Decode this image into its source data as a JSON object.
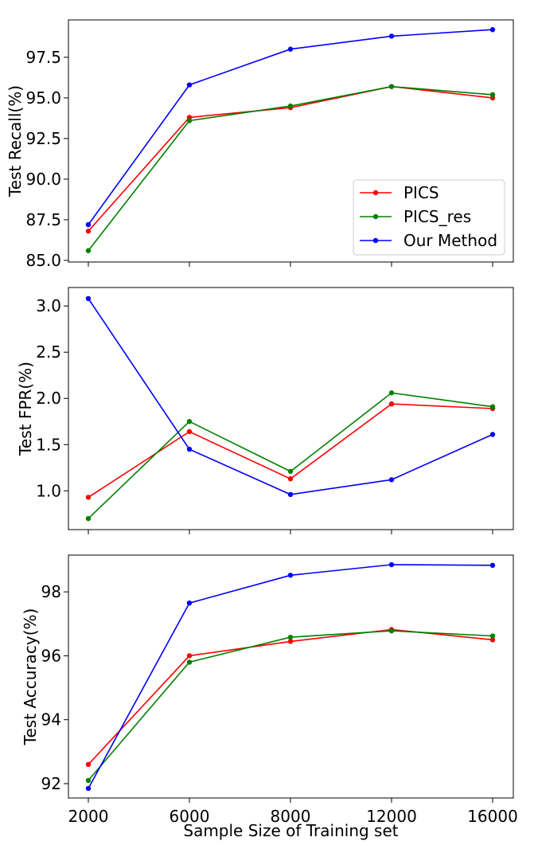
{
  "chart_data": [
    {
      "type": "line",
      "x": [
        "2000",
        "6000",
        "8000",
        "12000",
        "16000"
      ],
      "ylabel": "Test Recall(%)",
      "ylim": [
        84.9,
        99.8
      ],
      "yticks": [
        85.0,
        87.5,
        90.0,
        92.5,
        95.0,
        97.5
      ],
      "ytick_labels": [
        "85.0",
        "87.5",
        "90.0",
        "92.5",
        "95.0",
        "97.5"
      ],
      "show_xtick_labels": false,
      "grid": false,
      "legend": "bottom-right",
      "series": [
        {
          "name": "PICS",
          "color": "#ff0000",
          "values": [
            86.8,
            93.8,
            94.4,
            95.7,
            95.0
          ]
        },
        {
          "name": "PICS_res",
          "color": "#008000",
          "values": [
            85.6,
            93.6,
            94.5,
            95.7,
            95.2
          ]
        },
        {
          "name": "Our Method",
          "color": "#0000ff",
          "values": [
            87.2,
            95.8,
            98.0,
            98.8,
            99.2
          ]
        }
      ]
    },
    {
      "type": "line",
      "x": [
        "2000",
        "6000",
        "8000",
        "12000",
        "16000"
      ],
      "ylabel": "Test FPR(%)",
      "ylim": [
        0.58,
        3.2
      ],
      "yticks": [
        1.0,
        1.5,
        2.0,
        2.5,
        3.0
      ],
      "ytick_labels": [
        "1.0",
        "1.5",
        "2.0",
        "2.5",
        "3.0"
      ],
      "show_xtick_labels": false,
      "grid": false,
      "series": [
        {
          "name": "PICS",
          "color": "#ff0000",
          "values": [
            0.93,
            1.64,
            1.13,
            1.94,
            1.89
          ]
        },
        {
          "name": "PICS_res",
          "color": "#008000",
          "values": [
            0.7,
            1.75,
            1.21,
            2.06,
            1.91
          ]
        },
        {
          "name": "Our Method",
          "color": "#0000ff",
          "values": [
            3.08,
            1.45,
            0.96,
            1.12,
            1.61
          ]
        }
      ]
    },
    {
      "type": "line",
      "x": [
        "2000",
        "6000",
        "8000",
        "12000",
        "16000"
      ],
      "xlabel": "Sample Size of Training set",
      "ylabel": "Test Accuracy(%)",
      "ylim": [
        91.55,
        99.15
      ],
      "yticks": [
        92,
        94,
        96,
        98
      ],
      "ytick_labels": [
        "92",
        "94",
        "96",
        "98"
      ],
      "show_xtick_labels": true,
      "grid": false,
      "series": [
        {
          "name": "PICS",
          "color": "#ff0000",
          "values": [
            92.6,
            96.0,
            96.45,
            96.82,
            96.5
          ]
        },
        {
          "name": "PICS_res",
          "color": "#008000",
          "values": [
            92.1,
            95.8,
            96.58,
            96.78,
            96.62
          ]
        },
        {
          "name": "Our Method",
          "color": "#0000ff",
          "values": [
            91.85,
            97.65,
            98.52,
            98.85,
            98.83
          ]
        }
      ]
    }
  ]
}
